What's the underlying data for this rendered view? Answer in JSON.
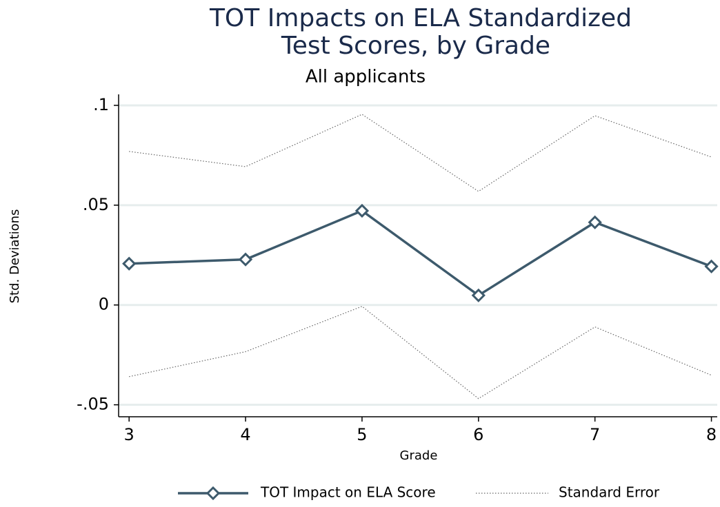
{
  "chart_data": {
    "type": "line",
    "title": [
      "TOT Impacts on ELA Standardized",
      "Test Scores, by Grade"
    ],
    "subtitle": "All applicants",
    "x_label": "Grade",
    "y_label": "Std. Deviations",
    "x": [
      3,
      4,
      5,
      6,
      7,
      8
    ],
    "series": [
      {
        "name": "TOT Impact on ELA Score",
        "color": "#3d5a6c",
        "marker": "diamond",
        "values": [
          0.0207,
          0.0228,
          0.0472,
          0.0048,
          0.0414,
          0.0193
        ]
      },
      {
        "name": "Standard Error",
        "color": "#666666",
        "style": "dotted",
        "upper": [
          0.0769,
          0.0693,
          0.0955,
          0.0569,
          0.0948,
          0.0741
        ],
        "lower": [
          -0.0359,
          -0.0234,
          -0.0007,
          -0.0469,
          -0.011,
          -0.0352
        ]
      }
    ],
    "xlim": [
      2.91,
      8.05
    ],
    "ylim": [
      -0.056,
      0.1055
    ],
    "xticks": [
      3,
      4,
      5,
      6,
      7,
      8
    ],
    "yticks": [
      {
        "value": -0.05,
        "label": "-.05"
      },
      0,
      {
        "value": 0.05,
        "label": ".05"
      },
      {
        "value": 0.1,
        "label": ".1"
      }
    ],
    "grid": true,
    "legend": "bottom"
  }
}
